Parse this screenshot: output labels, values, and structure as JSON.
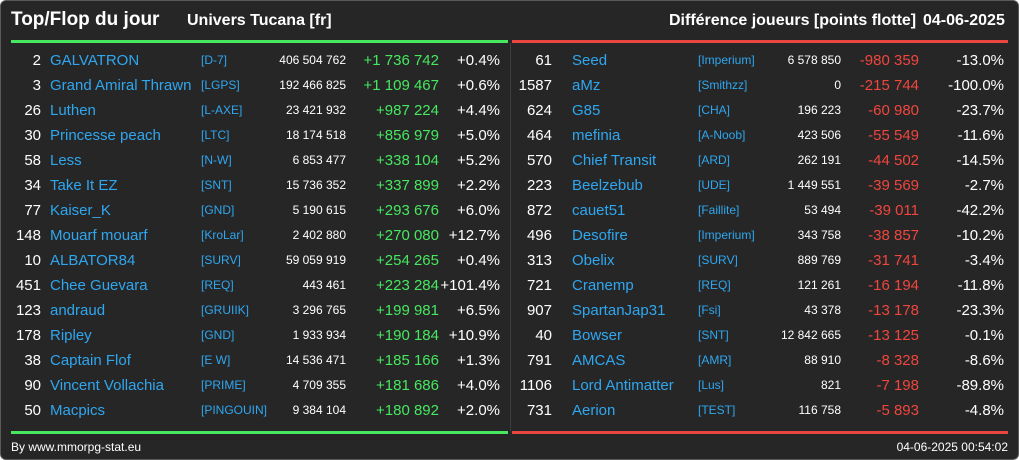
{
  "header": {
    "title": "Top/Flop du jour",
    "universe": "Univers Tucana [fr]",
    "metric": "Différence joueurs [points flotte]",
    "date": "04-06-2025"
  },
  "colors": {
    "top_accent": "#46e860",
    "flop_accent": "#e8463e",
    "link": "#2fa7f0",
    "background": "#262626"
  },
  "top": [
    {
      "rank": "2",
      "name": "GALVATRON",
      "alliance": "[D-7]",
      "points": "406 504 762",
      "diff": "+1 736 742",
      "pct": "+0.4%"
    },
    {
      "rank": "3",
      "name": "Grand Amiral Thrawn",
      "alliance": "[LGPS]",
      "points": "192 466 825",
      "diff": "+1 109 467",
      "pct": "+0.6%"
    },
    {
      "rank": "26",
      "name": "Luthen",
      "alliance": "[L-AXE]",
      "points": "23 421 932",
      "diff": "+987 224",
      "pct": "+4.4%"
    },
    {
      "rank": "30",
      "name": "Princesse peach",
      "alliance": "[LTC]",
      "points": "18 174 518",
      "diff": "+856 979",
      "pct": "+5.0%"
    },
    {
      "rank": "58",
      "name": "Less",
      "alliance": "[N-W]",
      "points": "6 853 477",
      "diff": "+338 104",
      "pct": "+5.2%"
    },
    {
      "rank": "34",
      "name": "Take It EZ",
      "alliance": "[SNT]",
      "points": "15 736 352",
      "diff": "+337 899",
      "pct": "+2.2%"
    },
    {
      "rank": "77",
      "name": "Kaiser_K",
      "alliance": "[GND]",
      "points": "5 190 615",
      "diff": "+293 676",
      "pct": "+6.0%"
    },
    {
      "rank": "148",
      "name": "Mouarf mouarf",
      "alliance": "[KroLar]",
      "points": "2 402 880",
      "diff": "+270 080",
      "pct": "+12.7%"
    },
    {
      "rank": "10",
      "name": "ALBATOR84",
      "alliance": "[SURV]",
      "points": "59 059 919",
      "diff": "+254 265",
      "pct": "+0.4%"
    },
    {
      "rank": "451",
      "name": "Chee Guevara",
      "alliance": "[REQ]",
      "points": "443 461",
      "diff": "+223 284",
      "pct": "+101.4%"
    },
    {
      "rank": "123",
      "name": "andraud",
      "alliance": "[GRUIIK]",
      "points": "3 296 765",
      "diff": "+199 981",
      "pct": "+6.5%"
    },
    {
      "rank": "178",
      "name": "Ripley",
      "alliance": "[GND]",
      "points": "1 933 934",
      "diff": "+190 184",
      "pct": "+10.9%"
    },
    {
      "rank": "38",
      "name": "Captain Flof",
      "alliance": "[E W]",
      "points": "14 536 471",
      "diff": "+185 166",
      "pct": "+1.3%"
    },
    {
      "rank": "90",
      "name": "Vincent Vollachia",
      "alliance": "[PRIME]",
      "points": "4 709 355",
      "diff": "+181 686",
      "pct": "+4.0%"
    },
    {
      "rank": "50",
      "name": "Macpics",
      "alliance": "[PINGOUIN]",
      "points": "9 384 104",
      "diff": "+180 892",
      "pct": "+2.0%"
    }
  ],
  "flop": [
    {
      "rank": "61",
      "name": "Seed",
      "alliance": "[Imperium]",
      "points": "6 578 850",
      "diff": "-980 359",
      "pct": "-13.0%"
    },
    {
      "rank": "1587",
      "name": "aMz",
      "alliance": "[Smithzz]",
      "points": "0",
      "diff": "-215 744",
      "pct": "-100.0%"
    },
    {
      "rank": "624",
      "name": "G85",
      "alliance": "[CHA]",
      "points": "196 223",
      "diff": "-60 980",
      "pct": "-23.7%"
    },
    {
      "rank": "464",
      "name": "mefinia",
      "alliance": "[A-Noob]",
      "points": "423 506",
      "diff": "-55 549",
      "pct": "-11.6%"
    },
    {
      "rank": "570",
      "name": "Chief Transit",
      "alliance": "[ARD]",
      "points": "262 191",
      "diff": "-44 502",
      "pct": "-14.5%"
    },
    {
      "rank": "223",
      "name": "Beelzebub",
      "alliance": "[UDE]",
      "points": "1 449 551",
      "diff": "-39 569",
      "pct": "-2.7%"
    },
    {
      "rank": "872",
      "name": "cauet51",
      "alliance": "[Faillite]",
      "points": "53 494",
      "diff": "-39 011",
      "pct": "-42.2%"
    },
    {
      "rank": "496",
      "name": "Desofire",
      "alliance": "[Imperium]",
      "points": "343 758",
      "diff": "-38 857",
      "pct": "-10.2%"
    },
    {
      "rank": "313",
      "name": "Obelix",
      "alliance": "[SURV]",
      "points": "889 769",
      "diff": "-31 741",
      "pct": "-3.4%"
    },
    {
      "rank": "721",
      "name": "Cranemp",
      "alliance": "[REQ]",
      "points": "121 261",
      "diff": "-16 194",
      "pct": "-11.8%"
    },
    {
      "rank": "907",
      "name": "SpartanJap31",
      "alliance": "[Fsi]",
      "points": "43 378",
      "diff": "-13 178",
      "pct": "-23.3%"
    },
    {
      "rank": "40",
      "name": "Bowser",
      "alliance": "[SNT]",
      "points": "12 842 665",
      "diff": "-13 125",
      "pct": "-0.1%"
    },
    {
      "rank": "791",
      "name": "AMCAS",
      "alliance": "[AMR]",
      "points": "88 910",
      "diff": "-8 328",
      "pct": "-8.6%"
    },
    {
      "rank": "1106",
      "name": "Lord Antimatter",
      "alliance": "[Lus]",
      "points": "821",
      "diff": "-7 198",
      "pct": "-89.8%"
    },
    {
      "rank": "731",
      "name": "Aerion",
      "alliance": "[TEST]",
      "points": "116 758",
      "diff": "-5 893",
      "pct": "-4.8%"
    }
  ],
  "footer": {
    "source": "By www.mmorpg-stat.eu",
    "timestamp": "04-06-2025 00:54:02"
  }
}
